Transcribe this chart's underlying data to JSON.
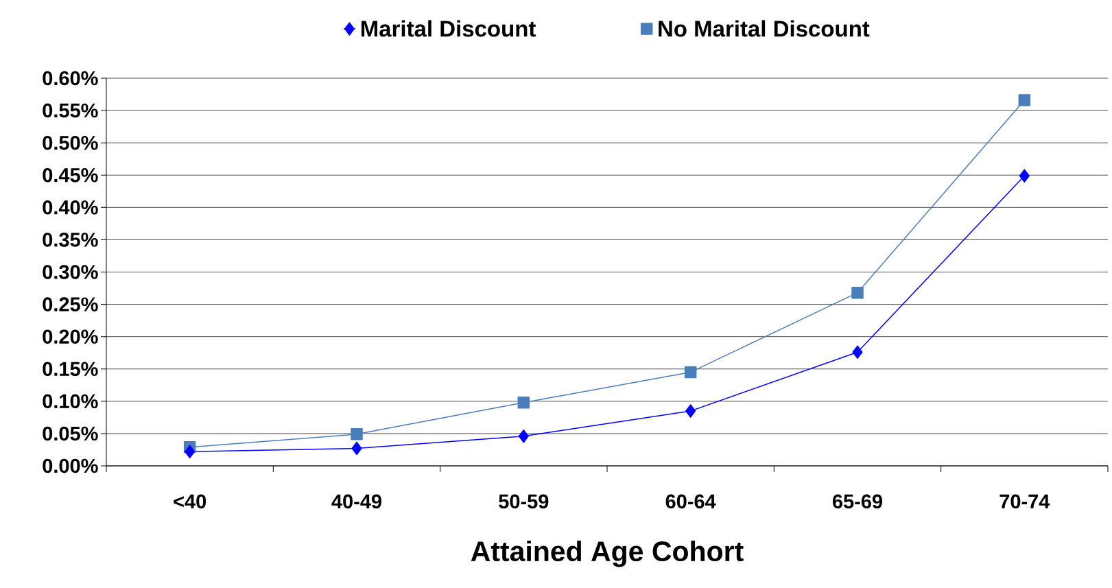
{
  "chart_data": {
    "type": "line",
    "xlabel": "Attained Age Cohort",
    "categories": [
      "<40",
      "40-49",
      "50-59",
      "60-64",
      "65-69",
      "70-74"
    ],
    "series": [
      {
        "name": "Marital Discount",
        "color": "#0000ff",
        "marker": "diamond",
        "values": [
          0.022,
          0.027,
          0.046,
          0.085,
          0.176,
          0.449
        ]
      },
      {
        "name": "No Marital Discount",
        "color": "#4a7ebb",
        "marker": "square",
        "values": [
          0.029,
          0.049,
          0.098,
          0.145,
          0.268,
          0.566
        ]
      }
    ],
    "ylim": [
      0,
      0.6
    ],
    "yticks": [
      {
        "value": 0,
        "label": "0.00%"
      },
      {
        "value": 0.05,
        "label": "0.05%"
      },
      {
        "value": 0.1,
        "label": "0.10%"
      },
      {
        "value": 0.15,
        "label": "0.15%"
      },
      {
        "value": 0.2,
        "label": "0.20%"
      },
      {
        "value": 0.25,
        "label": "0.25%"
      },
      {
        "value": 0.3,
        "label": "0.30%"
      },
      {
        "value": 0.35,
        "label": "0.35%"
      },
      {
        "value": 0.4,
        "label": "0.40%"
      },
      {
        "value": 0.45,
        "label": "0.45%"
      },
      {
        "value": 0.5,
        "label": "0.50%"
      },
      {
        "value": 0.55,
        "label": "0.55%"
      },
      {
        "value": 0.6,
        "label": "0.60%"
      }
    ],
    "grid": "y",
    "legend": "top"
  }
}
